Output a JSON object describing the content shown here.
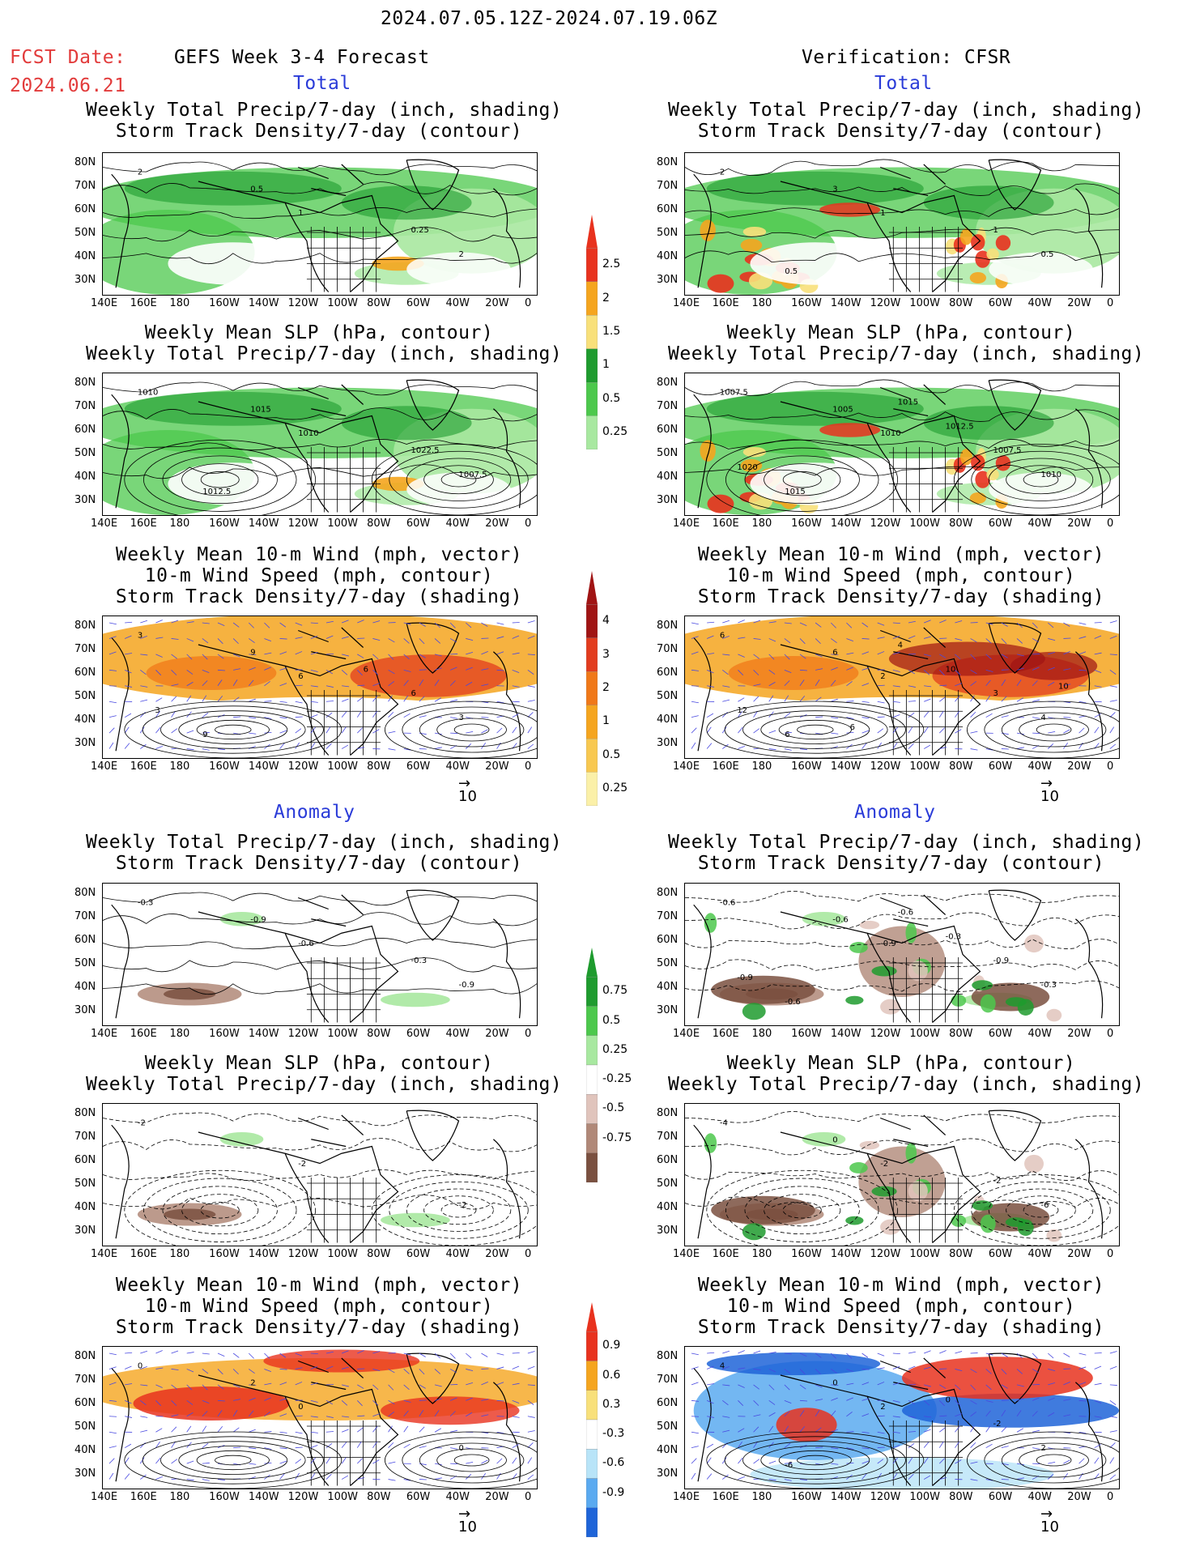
{
  "header": {
    "period": "2024.07.05.12Z-2024.07.19.06Z",
    "fcst_label": "FCST Date:",
    "fcst_date": "2024.06.21",
    "left_title": "GEFS Week 3-4 Forecast",
    "right_title": "Verification: CFSR"
  },
  "sections": {
    "total": "Total",
    "anomaly": "Anomaly"
  },
  "panel_titles": {
    "precip_a": "Weekly Total Precip/7-day (inch, shading)",
    "precip_b": "Storm Track Density/7-day (contour)",
    "slp_a": "Weekly Mean SLP (hPa, contour)",
    "slp_b": "Weekly Total Precip/7-day (inch, shading)",
    "wind_a": "Weekly Mean 10-m Wind (mph, vector)",
    "wind_b": "10-m Wind Speed (mph, contour)",
    "wind_c": "Storm Track Density/7-day (shading)"
  },
  "axes": {
    "lat": [
      "80N",
      "70N",
      "60N",
      "50N",
      "40N",
      "30N"
    ],
    "lon": [
      "140E",
      "160E",
      "180",
      "160W",
      "140W",
      "120W",
      "100W",
      "80W",
      "60W",
      "40W",
      "20W",
      "0"
    ]
  },
  "vector_ref": "10",
  "colorbars": {
    "precip_total": {
      "labels": [
        "2.5",
        "2",
        "1.5",
        "1",
        "0.5",
        "0.25"
      ],
      "colors": [
        "#e8321e",
        "#f5a51e",
        "#f8e07a",
        "#1e9b2e",
        "#4cc84c",
        "#a8e8a0"
      ]
    },
    "storm_total": {
      "labels": [
        "4",
        "3",
        "2",
        "1",
        "0.5",
        "0.25"
      ],
      "colors": [
        "#a01414",
        "#e23c1e",
        "#f07818",
        "#f5a51e",
        "#f8c850",
        "#fbf0a8"
      ]
    },
    "precip_anom": {
      "labels": [
        "0.75",
        "0.5",
        "0.25",
        "-0.25",
        "-0.5",
        "-0.75"
      ],
      "colors": [
        "#1e9b2e",
        "#4cc84c",
        "#a8e8a0",
        "#ffffff",
        "#e0c4bc",
        "#b08878",
        "#7a5040"
      ]
    },
    "storm_anom": {
      "labels": [
        "0.9",
        "0.6",
        "0.3",
        "-0.3",
        "-0.6",
        "-0.9"
      ],
      "colors": [
        "#e8321e",
        "#f5a51e",
        "#f8e07a",
        "#ffffff",
        "#b8e4f8",
        "#5aaaf0",
        "#1e64d8"
      ]
    }
  },
  "contour_labels": {
    "L_precip_total": [
      "2",
      "1",
      "2",
      "0.5",
      "0.25"
    ],
    "R_precip_total": [
      "2",
      "1",
      "0.5",
      "3",
      "1",
      "0.5"
    ],
    "L_slp_total": [
      "1010",
      "1010",
      "1007.5",
      "1015",
      "1022.5",
      "1012.5"
    ],
    "R_slp_total": [
      "1007.5",
      "1010",
      "1010",
      "1005",
      "1007.5",
      "1015",
      "1012.5",
      "1020",
      "1015"
    ],
    "L_wind_total": [
      "3",
      "6",
      "3",
      "9",
      "6",
      "9",
      "6",
      "3"
    ],
    "R_wind_total": [
      "6",
      "2",
      "4",
      "6",
      "3",
      "6",
      "10",
      "12",
      "4",
      "10",
      "6"
    ],
    "L_precip_anom": [
      "-0.3",
      "-0.6",
      "-0.9",
      "-0.9",
      "-0.3"
    ],
    "R_precip_anom": [
      "-0.6",
      "-0.9",
      "-0.3",
      "-0.6",
      "-0.9",
      "-0.6",
      "-0.3",
      "-0.9",
      "-0.6"
    ],
    "L_slp_anom": [
      "-2",
      "-2",
      "-2"
    ],
    "R_slp_anom": [
      "-4",
      "-2",
      "-6",
      "0",
      "-2"
    ],
    "L_wind_anom": [
      "0",
      "0",
      "0",
      "2"
    ],
    "R_wind_anom": [
      "4",
      "2",
      "2",
      "0",
      "-2",
      "-6",
      "0"
    ]
  }
}
